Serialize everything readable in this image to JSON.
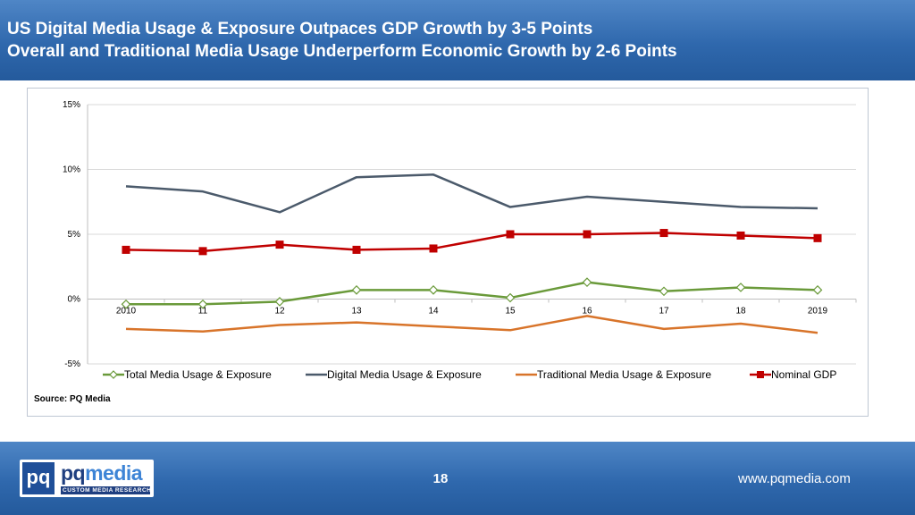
{
  "header": {
    "line1": "US Digital Media Usage & Exposure Outpaces GDP Growth by 3-5 Points",
    "line2": "Overall and Traditional Media Usage Underperform Economic Growth by 2-6 Points"
  },
  "source": "Source: PQ Media",
  "footer": {
    "page": "18",
    "website": "www.pqmedia.com",
    "logo_prefix": "pq",
    "logo_name_a": "pq",
    "logo_name_b": "media",
    "logo_tagline": "CUSTOM MEDIA RESEARCH"
  },
  "colors": {
    "total": "#6a9a3a",
    "digital": "#4b5a6b",
    "traditional": "#d8742a",
    "gdp": "#c00000"
  },
  "chart_data": {
    "type": "line",
    "title": "",
    "xlabel": "",
    "ylabel": "",
    "categories": [
      "2010",
      "11",
      "12",
      "13",
      "14",
      "15",
      "16",
      "17",
      "18",
      "2019"
    ],
    "ylim": [
      -5,
      15
    ],
    "yticks": [
      15,
      10,
      5,
      0,
      -5
    ],
    "ytick_labels": [
      "15%",
      "10%",
      "5%",
      "0%",
      "-5%"
    ],
    "legend_position": "bottom",
    "series": [
      {
        "key": "total",
        "name": "Total Media Usage & Exposure",
        "marker": "diamond-open",
        "values": [
          -0.4,
          -0.4,
          -0.2,
          0.7,
          0.7,
          0.1,
          1.3,
          0.6,
          0.9,
          0.7
        ]
      },
      {
        "key": "digital",
        "name": "Digital Media Usage & Exposure",
        "marker": "none",
        "values": [
          8.7,
          8.3,
          6.7,
          9.4,
          9.6,
          7.1,
          7.9,
          7.5,
          7.1,
          7.0
        ]
      },
      {
        "key": "traditional",
        "name": "Traditional Media Usage & Exposure",
        "marker": "none",
        "values": [
          -2.3,
          -2.5,
          -2.0,
          -1.8,
          -2.1,
          -2.4,
          -1.3,
          -2.3,
          -1.9,
          -2.6
        ]
      },
      {
        "key": "gdp",
        "name": "Nominal GDP",
        "marker": "square",
        "values": [
          3.8,
          3.7,
          4.2,
          3.8,
          3.9,
          5.0,
          5.0,
          5.1,
          4.9,
          4.7
        ]
      }
    ]
  }
}
